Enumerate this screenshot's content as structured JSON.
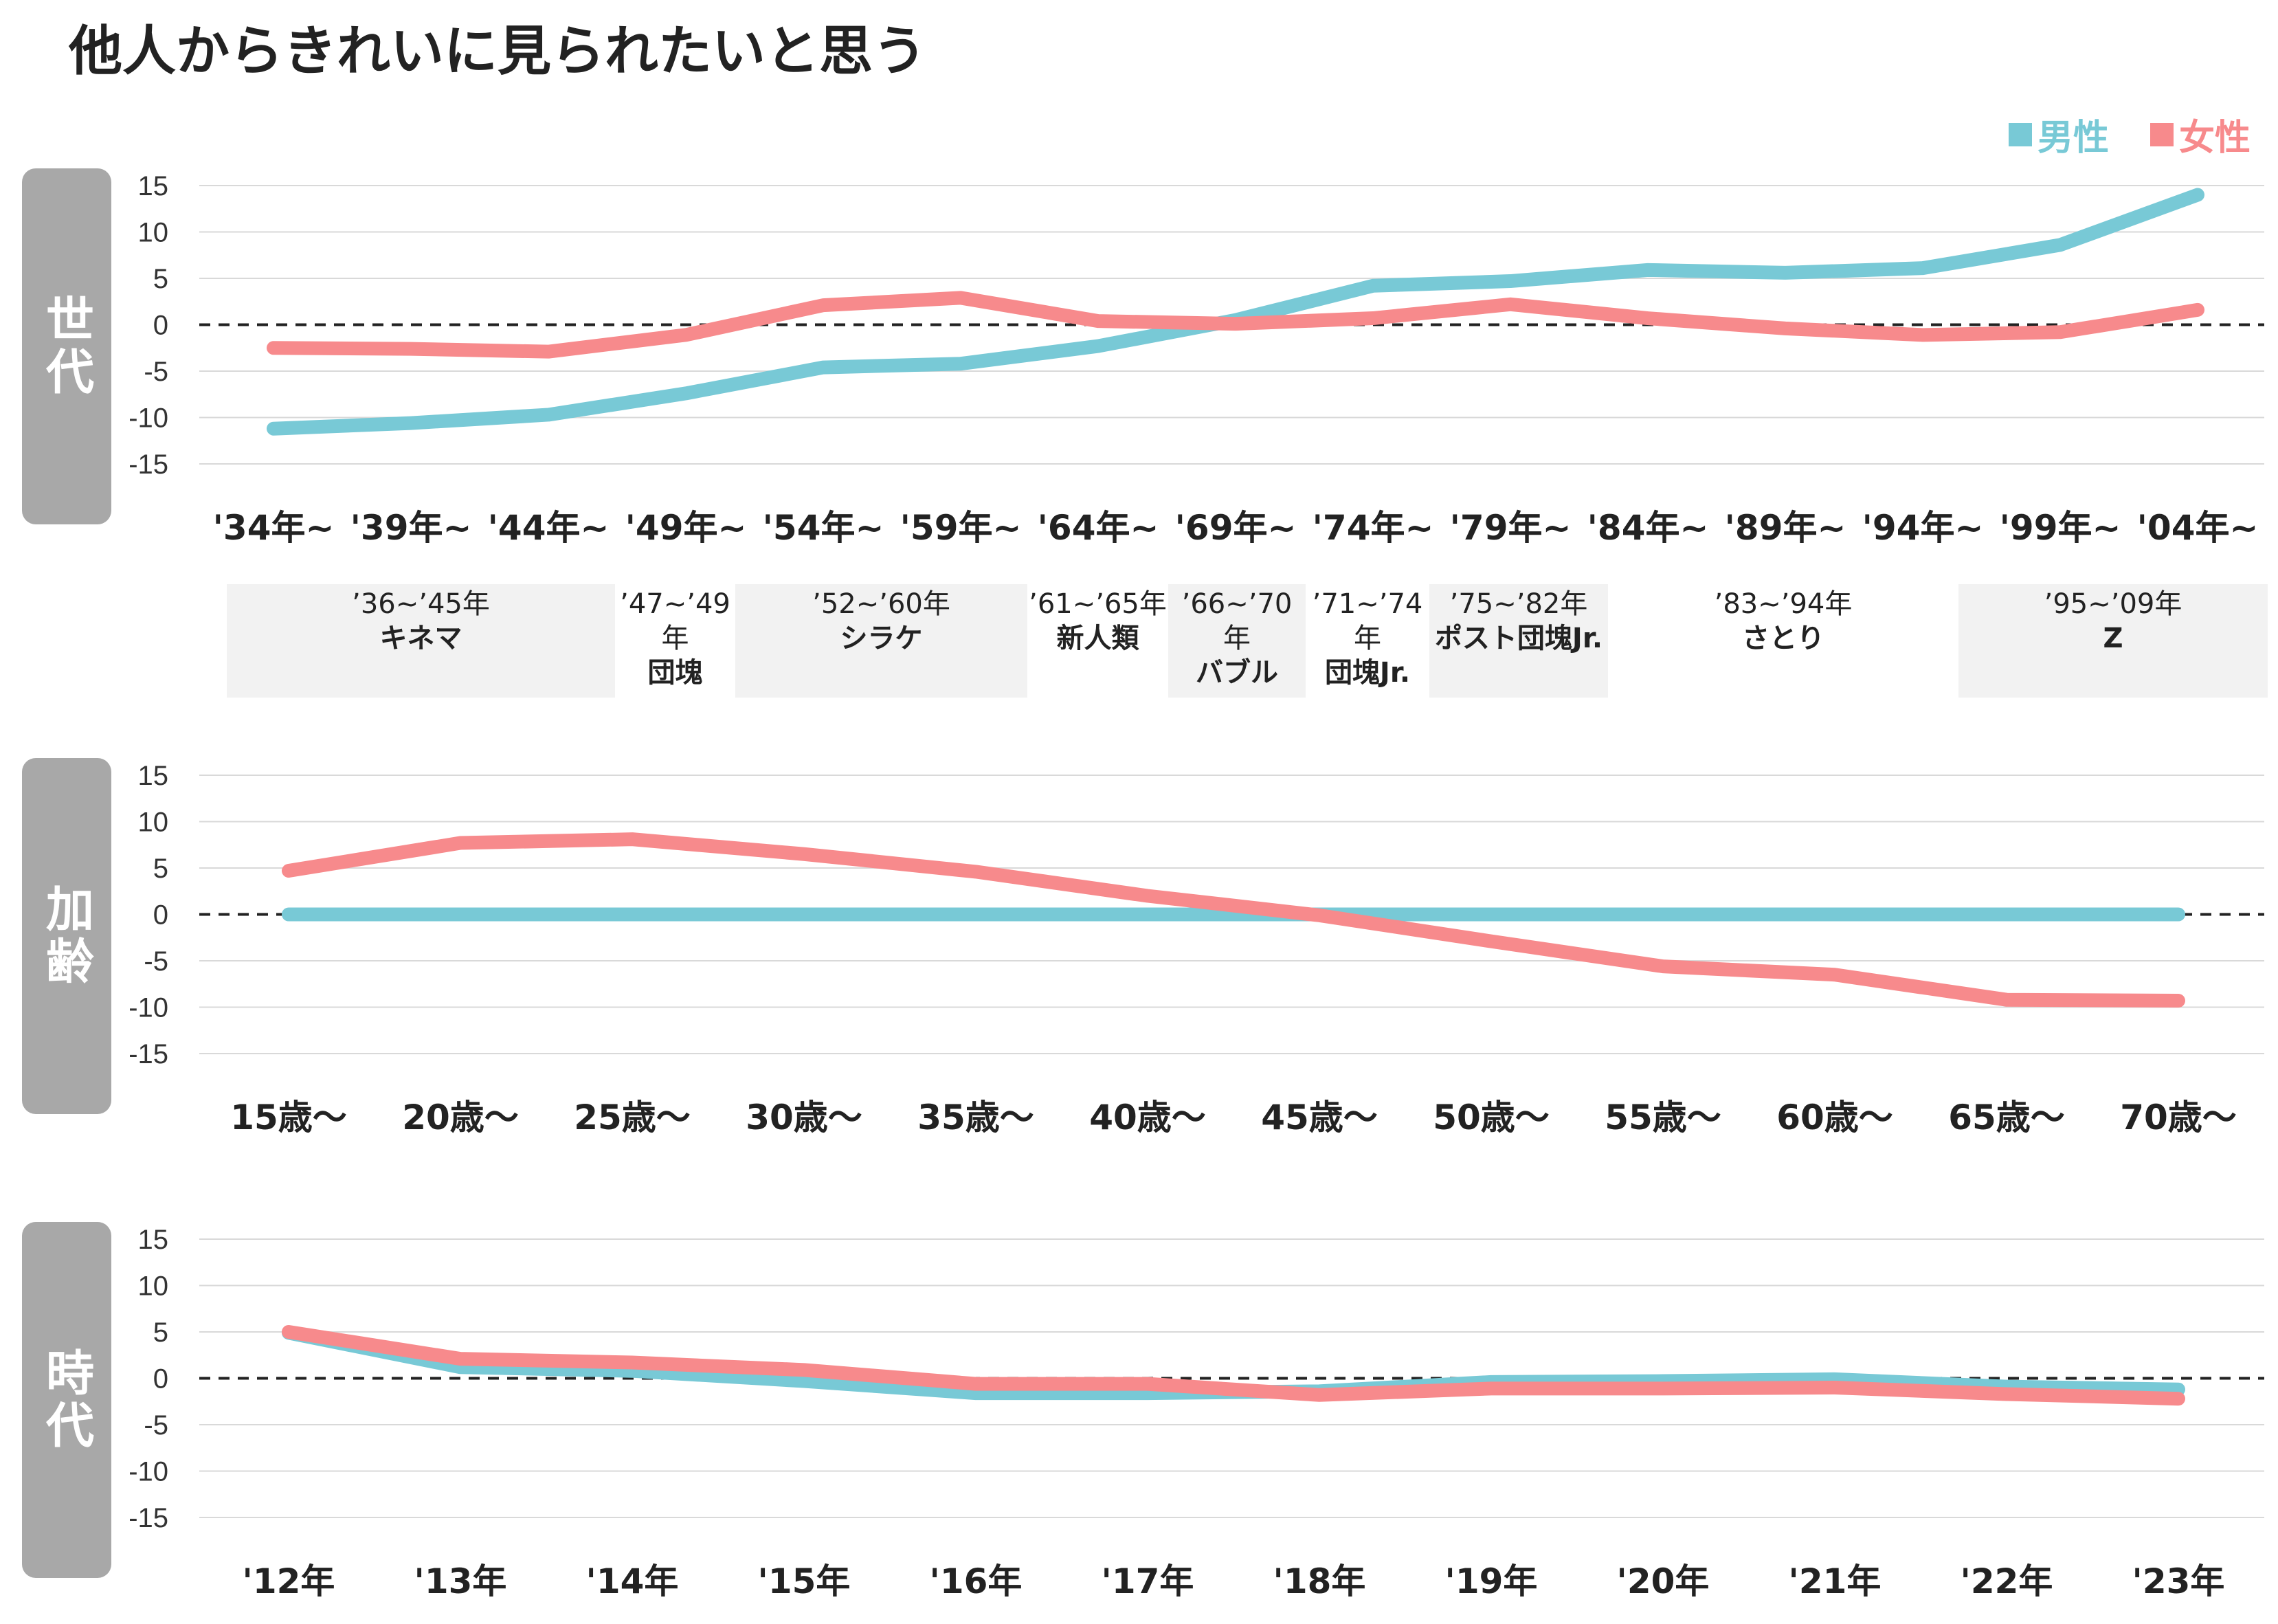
{
  "title": "他人からきれいに見られたいと思う",
  "legend": [
    {
      "label": "男性",
      "color": "#78c9d6"
    },
    {
      "label": "女性",
      "color": "#f78a8c"
    }
  ],
  "colors": {
    "male": "#78c9d6",
    "female": "#f78a8c",
    "side_tab": "#a8a8a8",
    "grid": "#d9d9d9",
    "gen_shade": "#f2f2f2"
  },
  "panels": [
    {
      "label": "世代"
    },
    {
      "label": "加齢"
    },
    {
      "label": "時代"
    }
  ],
  "generations": [
    {
      "years": "’36~’45年",
      "name": "キネマ",
      "shaded": true
    },
    {
      "years": "’47~’49年",
      "name": "団塊",
      "shaded": false
    },
    {
      "years": "’52~’60年",
      "name": "シラケ",
      "shaded": true
    },
    {
      "years": "’61~’65年",
      "name": "新人類",
      "shaded": false
    },
    {
      "years": "’66~’70年",
      "name": "バブル",
      "shaded": true
    },
    {
      "years": "’71~’74年",
      "name": "団塊Jr.",
      "shaded": false
    },
    {
      "years": "’75~’82年",
      "name": "ポスト団塊Jr.",
      "shaded": true
    },
    {
      "years": "’83~’94年",
      "name": "さとり",
      "shaded": false
    },
    {
      "years": "’95~’09年",
      "name": "Z",
      "shaded": true
    }
  ],
  "chart_data": [
    {
      "type": "line",
      "panel": "世代",
      "categories": [
        "'34年~",
        "'39年~",
        "'44年~",
        "'49年~",
        "'54年~",
        "'59年~",
        "'64年~",
        "'69年~",
        "'74年~",
        "'79年~",
        "'84年~",
        "'89年~",
        "'94年~",
        "'99年~",
        "'04年~"
      ],
      "yticks": [
        15,
        10,
        5,
        0,
        -5,
        -10,
        -15
      ],
      "ylim": [
        -15,
        15
      ],
      "series": [
        {
          "name": "男性",
          "values": [
            -11.2,
            -10.6,
            -9.7,
            -7.4,
            -4.6,
            -4.2,
            -2.3,
            0.5,
            4.2,
            4.7,
            5.9,
            5.6,
            6.1,
            8.6,
            14.0
          ]
        },
        {
          "name": "女性",
          "values": [
            -2.5,
            -2.6,
            -2.9,
            -1.1,
            2.1,
            2.9,
            0.4,
            0.1,
            0.7,
            2.2,
            0.7,
            -0.4,
            -1.1,
            -0.8,
            1.6
          ]
        }
      ]
    },
    {
      "type": "line",
      "panel": "加齢",
      "categories": [
        "15歳～",
        "20歳～",
        "25歳～",
        "30歳～",
        "35歳～",
        "40歳～",
        "45歳～",
        "50歳～",
        "55歳～",
        "60歳～",
        "65歳～",
        "70歳～"
      ],
      "yticks": [
        15,
        10,
        5,
        0,
        -5,
        -10,
        -15
      ],
      "ylim": [
        -15,
        15
      ],
      "series": [
        {
          "name": "男性",
          "values": [
            0,
            0,
            0,
            0,
            0,
            0,
            0,
            0,
            0,
            0,
            0,
            0
          ]
        },
        {
          "name": "女性",
          "values": [
            4.7,
            7.7,
            8.1,
            6.5,
            4.6,
            2.0,
            -0.1,
            -2.9,
            -5.6,
            -6.5,
            -9.2,
            -9.3
          ]
        }
      ]
    },
    {
      "type": "line",
      "panel": "時代",
      "categories": [
        "'12年",
        "'13年",
        "'14年",
        "'15年",
        "'16年",
        "'17年",
        "'18年",
        "'19年",
        "'20年",
        "'21年",
        "'22年",
        "'23年"
      ],
      "yticks": [
        15,
        10,
        5,
        0,
        -5,
        -10,
        -15
      ],
      "ylim": [
        -15,
        15
      ],
      "series": [
        {
          "name": "男性",
          "values": [
            4.9,
            1.2,
            0.8,
            -0.3,
            -1.6,
            -1.6,
            -1.4,
            -0.4,
            -0.3,
            -0.1,
            -0.9,
            -1.2
          ]
        },
        {
          "name": "女性",
          "values": [
            5.0,
            2.1,
            1.7,
            0.9,
            -0.6,
            -0.6,
            -1.8,
            -1.1,
            -1.1,
            -1.0,
            -1.7,
            -2.2
          ]
        }
      ]
    }
  ]
}
